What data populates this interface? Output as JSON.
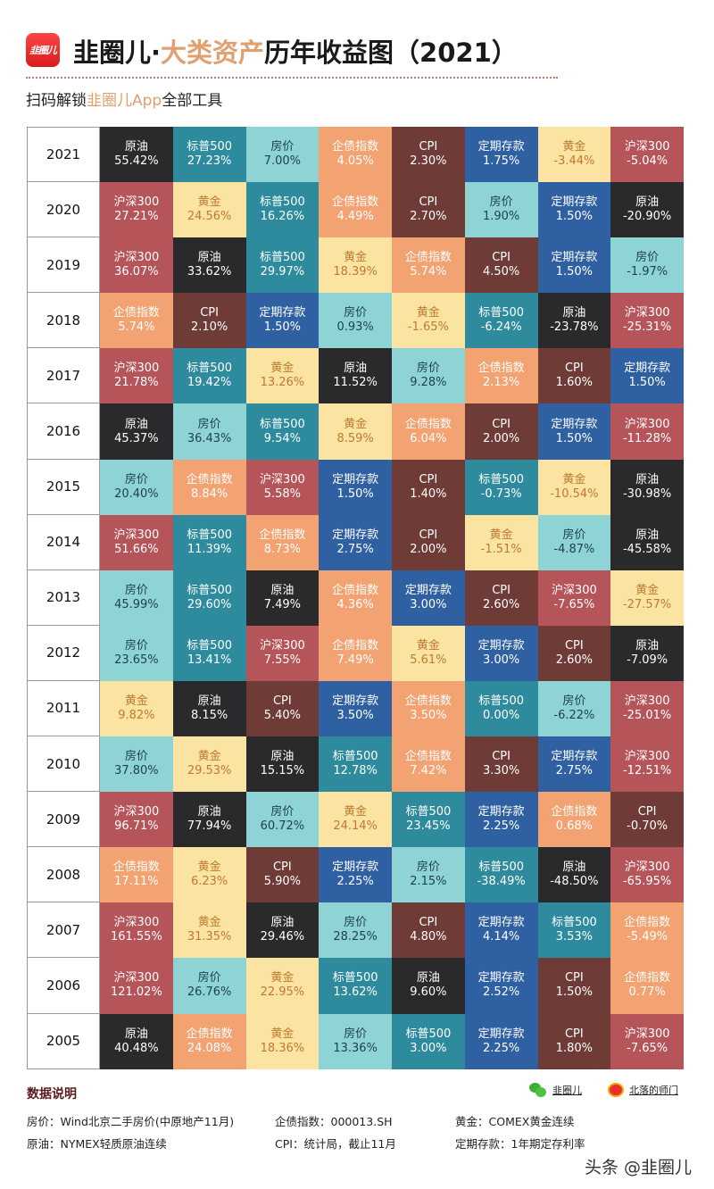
{
  "header": {
    "logo_text": "韭圈儿",
    "title_prefix": "韭圈儿·",
    "title_accent": "大类资产",
    "title_suffix": "历年收益图（2021）",
    "subtitle_prefix": "扫码解锁",
    "subtitle_accent": "韭圈儿App",
    "subtitle_suffix": "全部工具"
  },
  "colors": {
    "原油": {
      "bg": "#2a2a2c",
      "fg": "#ffffff"
    },
    "标普500": {
      "bg": "#2e8b9d",
      "fg": "#ffffff"
    },
    "房价": {
      "bg": "#8ed4d4",
      "fg": "#1d3f55"
    },
    "企债指数": {
      "bg": "#f3a272",
      "fg": "#ffffff"
    },
    "CPI": {
      "bg": "#6f3b37",
      "fg": "#ffffff"
    },
    "定期存款": {
      "bg": "#2f60a2",
      "fg": "#ffffff"
    },
    "黄金": {
      "bg": "#fbe3a2",
      "fg": "#c07a30"
    },
    "沪深300": {
      "bg": "#b5555a",
      "fg": "#ffffff"
    }
  },
  "chart_data": {
    "type": "table",
    "title": "韭圈儿·大类资产历年收益图（2021）",
    "description_sort": "each row sorted by return, descending",
    "rows": [
      {
        "year": "2021",
        "cells": [
          [
            "原油",
            "55.42%"
          ],
          [
            "标普500",
            "27.23%"
          ],
          [
            "房价",
            "7.00%"
          ],
          [
            "企债指数",
            "4.05%"
          ],
          [
            "CPI",
            "2.30%"
          ],
          [
            "定期存款",
            "1.75%"
          ],
          [
            "黄金",
            "-3.44%"
          ],
          [
            "沪深300",
            "-5.04%"
          ]
        ]
      },
      {
        "year": "2020",
        "cells": [
          [
            "沪深300",
            "27.21%"
          ],
          [
            "黄金",
            "24.56%"
          ],
          [
            "标普500",
            "16.26%"
          ],
          [
            "企债指数",
            "4.49%"
          ],
          [
            "CPI",
            "2.70%"
          ],
          [
            "房价",
            "1.90%"
          ],
          [
            "定期存款",
            "1.50%"
          ],
          [
            "原油",
            "-20.90%"
          ]
        ]
      },
      {
        "year": "2019",
        "cells": [
          [
            "沪深300",
            "36.07%"
          ],
          [
            "原油",
            "33.62%"
          ],
          [
            "标普500",
            "29.97%"
          ],
          [
            "黄金",
            "18.39%"
          ],
          [
            "企债指数",
            "5.74%"
          ],
          [
            "CPI",
            "4.50%"
          ],
          [
            "定期存款",
            "1.50%"
          ],
          [
            "房价",
            "-1.97%"
          ]
        ]
      },
      {
        "year": "2018",
        "cells": [
          [
            "企债指数",
            "5.74%"
          ],
          [
            "CPI",
            "2.10%"
          ],
          [
            "定期存款",
            "1.50%"
          ],
          [
            "房价",
            "0.93%"
          ],
          [
            "黄金",
            "-1.65%"
          ],
          [
            "标普500",
            "-6.24%"
          ],
          [
            "原油",
            "-23.78%"
          ],
          [
            "沪深300",
            "-25.31%"
          ]
        ]
      },
      {
        "year": "2017",
        "cells": [
          [
            "沪深300",
            "21.78%"
          ],
          [
            "标普500",
            "19.42%"
          ],
          [
            "黄金",
            "13.26%"
          ],
          [
            "原油",
            "11.52%"
          ],
          [
            "房价",
            "9.28%"
          ],
          [
            "企债指数",
            "2.13%"
          ],
          [
            "CPI",
            "1.60%"
          ],
          [
            "定期存款",
            "1.50%"
          ]
        ]
      },
      {
        "year": "2016",
        "cells": [
          [
            "原油",
            "45.37%"
          ],
          [
            "房价",
            "36.43%"
          ],
          [
            "标普500",
            "9.54%"
          ],
          [
            "黄金",
            "8.59%"
          ],
          [
            "企债指数",
            "6.04%"
          ],
          [
            "CPI",
            "2.00%"
          ],
          [
            "定期存款",
            "1.50%"
          ],
          [
            "沪深300",
            "-11.28%"
          ]
        ]
      },
      {
        "year": "2015",
        "cells": [
          [
            "房价",
            "20.40%"
          ],
          [
            "企债指数",
            "8.84%"
          ],
          [
            "沪深300",
            "5.58%"
          ],
          [
            "定期存款",
            "1.50%"
          ],
          [
            "CPI",
            "1.40%"
          ],
          [
            "标普500",
            "-0.73%"
          ],
          [
            "黄金",
            "-10.54%"
          ],
          [
            "原油",
            "-30.98%"
          ]
        ]
      },
      {
        "year": "2014",
        "cells": [
          [
            "沪深300",
            "51.66%"
          ],
          [
            "标普500",
            "11.39%"
          ],
          [
            "企债指数",
            "8.73%"
          ],
          [
            "定期存款",
            "2.75%"
          ],
          [
            "CPI",
            "2.00%"
          ],
          [
            "黄金",
            "-1.51%"
          ],
          [
            "房价",
            "-4.87%"
          ],
          [
            "原油",
            "-45.58%"
          ]
        ]
      },
      {
        "year": "2013",
        "cells": [
          [
            "房价",
            "45.99%"
          ],
          [
            "标普500",
            "29.60%"
          ],
          [
            "原油",
            "7.49%"
          ],
          [
            "企债指数",
            "4.36%"
          ],
          [
            "定期存款",
            "3.00%"
          ],
          [
            "CPI",
            "2.60%"
          ],
          [
            "沪深300",
            "-7.65%"
          ],
          [
            "黄金",
            "-27.57%"
          ]
        ]
      },
      {
        "year": "2012",
        "cells": [
          [
            "房价",
            "23.65%"
          ],
          [
            "标普500",
            "13.41%"
          ],
          [
            "沪深300",
            "7.55%"
          ],
          [
            "企债指数",
            "7.49%"
          ],
          [
            "黄金",
            "5.61%"
          ],
          [
            "定期存款",
            "3.00%"
          ],
          [
            "CPI",
            "2.60%"
          ],
          [
            "原油",
            "-7.09%"
          ]
        ]
      },
      {
        "year": "2011",
        "cells": [
          [
            "黄金",
            "9.82%"
          ],
          [
            "原油",
            "8.15%"
          ],
          [
            "CPI",
            "5.40%"
          ],
          [
            "定期存款",
            "3.50%"
          ],
          [
            "企债指数",
            "3.50%"
          ],
          [
            "标普500",
            "0.00%"
          ],
          [
            "房价",
            "-6.22%"
          ],
          [
            "沪深300",
            "-25.01%"
          ]
        ]
      },
      {
        "year": "2010",
        "cells": [
          [
            "房价",
            "37.80%"
          ],
          [
            "黄金",
            "29.53%"
          ],
          [
            "原油",
            "15.15%"
          ],
          [
            "标普500",
            "12.78%"
          ],
          [
            "企债指数",
            "7.42%"
          ],
          [
            "CPI",
            "3.30%"
          ],
          [
            "定期存款",
            "2.75%"
          ],
          [
            "沪深300",
            "-12.51%"
          ]
        ]
      },
      {
        "year": "2009",
        "cells": [
          [
            "沪深300",
            "96.71%"
          ],
          [
            "原油",
            "77.94%"
          ],
          [
            "房价",
            "60.72%"
          ],
          [
            "黄金",
            "24.14%"
          ],
          [
            "标普500",
            "23.45%"
          ],
          [
            "定期存款",
            "2.25%"
          ],
          [
            "企债指数",
            "0.68%"
          ],
          [
            "CPI",
            "-0.70%"
          ]
        ]
      },
      {
        "year": "2008",
        "cells": [
          [
            "企债指数",
            "17.11%"
          ],
          [
            "黄金",
            "6.23%"
          ],
          [
            "CPI",
            "5.90%"
          ],
          [
            "定期存款",
            "2.25%"
          ],
          [
            "房价",
            "2.15%"
          ],
          [
            "标普500",
            "-38.49%"
          ],
          [
            "原油",
            "-48.50%"
          ],
          [
            "沪深300",
            "-65.95%"
          ]
        ]
      },
      {
        "year": "2007",
        "cells": [
          [
            "沪深300",
            "161.55%"
          ],
          [
            "黄金",
            "31.35%"
          ],
          [
            "原油",
            "29.46%"
          ],
          [
            "房价",
            "28.25%"
          ],
          [
            "CPI",
            "4.80%"
          ],
          [
            "定期存款",
            "4.14%"
          ],
          [
            "标普500",
            "3.53%"
          ],
          [
            "企债指数",
            "-5.49%"
          ]
        ]
      },
      {
        "year": "2006",
        "cells": [
          [
            "沪深300",
            "121.02%"
          ],
          [
            "房价",
            "26.76%"
          ],
          [
            "黄金",
            "22.95%"
          ],
          [
            "标普500",
            "13.62%"
          ],
          [
            "原油",
            "9.60%"
          ],
          [
            "定期存款",
            "2.52%"
          ],
          [
            "CPI",
            "1.50%"
          ],
          [
            "企债指数",
            "0.77%"
          ]
        ]
      },
      {
        "year": "2005",
        "cells": [
          [
            "原油",
            "40.48%"
          ],
          [
            "企债指数",
            "24.08%"
          ],
          [
            "黄金",
            "18.36%"
          ],
          [
            "房价",
            "13.36%"
          ],
          [
            "标普500",
            "3.00%"
          ],
          [
            "定期存款",
            "2.25%"
          ],
          [
            "CPI",
            "1.80%"
          ],
          [
            "沪深300",
            "-7.65%"
          ]
        ]
      }
    ]
  },
  "notes": {
    "title": "数据说明",
    "items": [
      "房价：Wind北京二手房价(中原地产11月)",
      "企债指数：000013.SH",
      "黄金：COMEX黄金连续",
      "原油：NYMEX轻质原油连续",
      "CPI：统计局，截止11月",
      "定期存款：1年期定存利率"
    ]
  },
  "social": {
    "wechat": "韭圈儿",
    "weibo": "北落的师门"
  },
  "watermark": "头条 @韭圈儿"
}
